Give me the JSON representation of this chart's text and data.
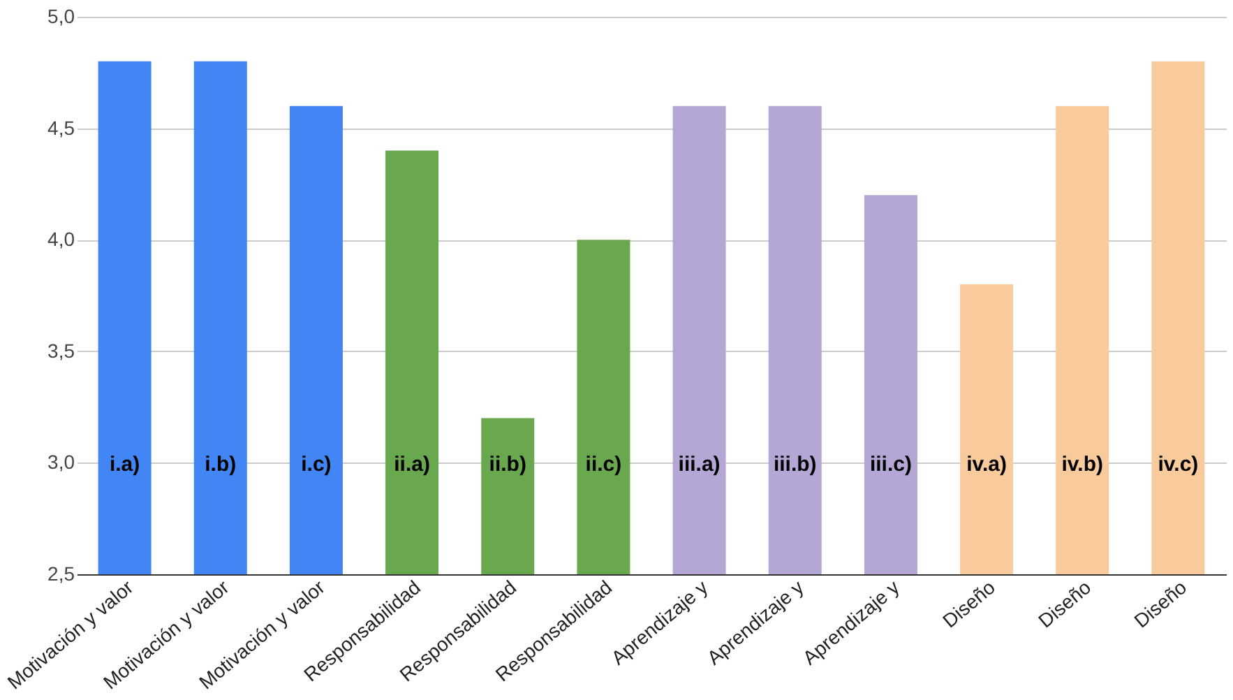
{
  "chart_data": {
    "type": "bar",
    "categories": [
      "Motivación y valor",
      "Motivación y valor",
      "Motivación y valor",
      "Responsabilidad",
      "Responsabilidad",
      "Responsabilidad",
      "Aprendizaje y",
      "Aprendizaje y",
      "Aprendizaje y",
      "Diseño",
      "Diseño",
      "Diseño"
    ],
    "values": [
      4.8,
      4.8,
      4.6,
      4.4,
      3.2,
      4.0,
      4.6,
      4.6,
      4.2,
      3.8,
      4.6,
      4.8
    ],
    "colors": [
      "#4285f4",
      "#4285f4",
      "#4285f4",
      "#6aa84f",
      "#6aa84f",
      "#6aa84f",
      "#b4a7d6",
      "#b4a7d6",
      "#b4a7d6",
      "#f9cb9c",
      "#f9cb9c",
      "#f9cb9c"
    ],
    "ylim": [
      2.5,
      5.0
    ],
    "yticks": [
      {
        "value": 2.5,
        "label": "2,5"
      },
      {
        "value": 3.0,
        "label": "3,0"
      },
      {
        "value": 3.5,
        "label": "3,5"
      },
      {
        "value": 4.0,
        "label": "4,0"
      },
      {
        "value": 4.5,
        "label": "4,5"
      },
      {
        "value": 5.0,
        "label": "5,0"
      }
    ],
    "grid": "y",
    "annotations": [
      "i.a)",
      "i.b)",
      "i.c)",
      "ii.a)",
      "ii.b)",
      "ii.c)",
      "iii.a)",
      "iii.b)",
      "iii.c)",
      "iv.a)",
      "iv.b)",
      "iv.c)"
    ]
  }
}
